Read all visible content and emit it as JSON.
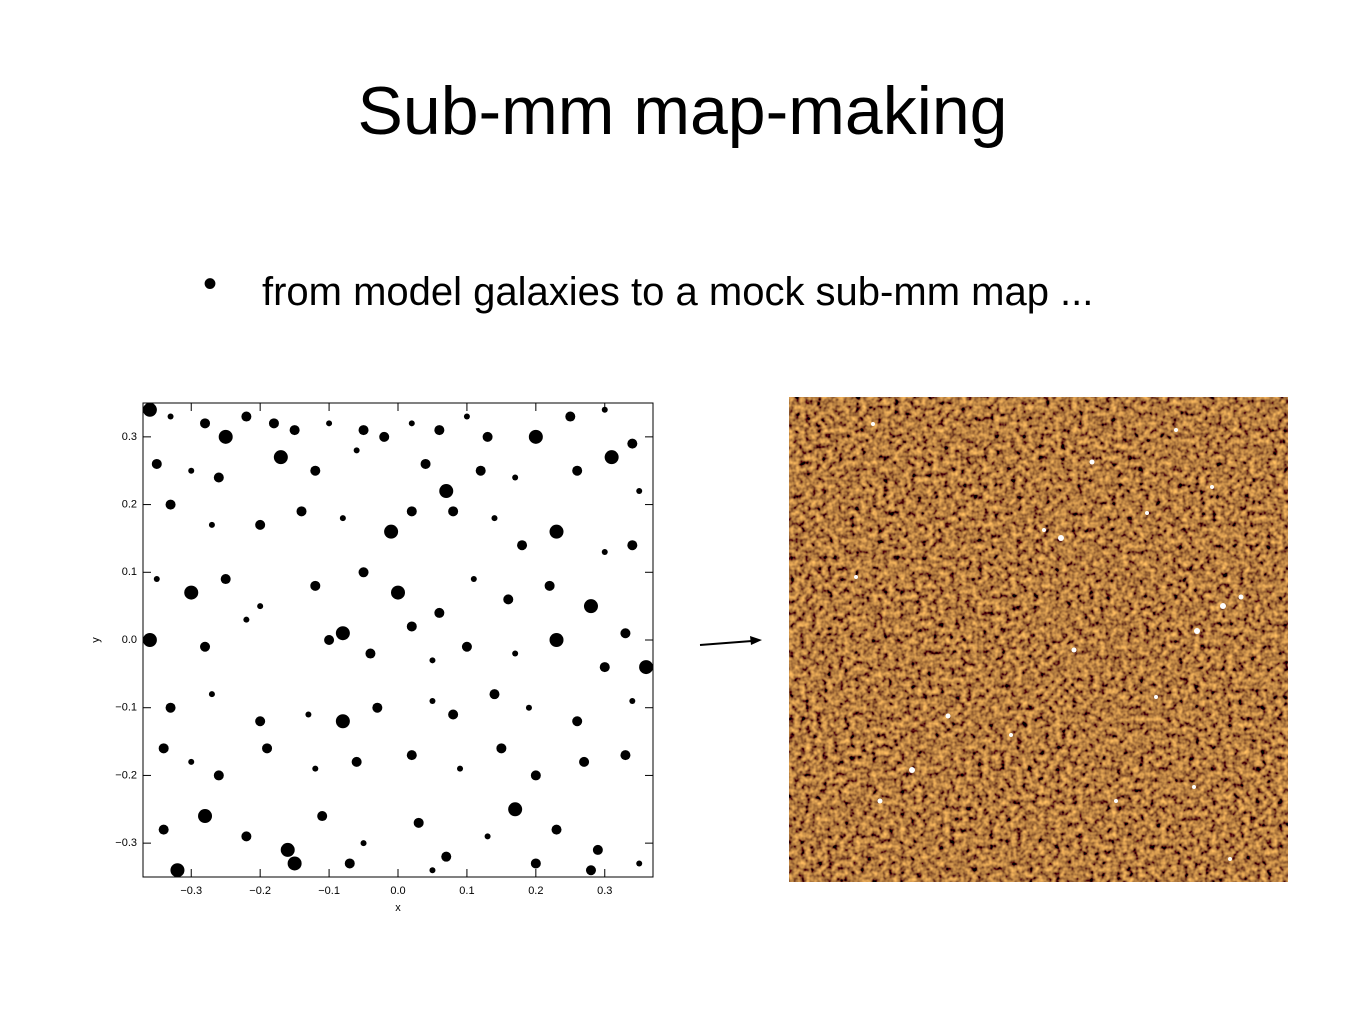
{
  "slide": {
    "title": "Sub-mm map-making",
    "bullet": "from model galaxies to a mock sub-mm map ..."
  },
  "chart_data": {
    "type": "scatter",
    "x_label": "x",
    "y_label": "y",
    "color": "#000000",
    "xlim": [
      -0.37,
      0.37
    ],
    "ylim": [
      -0.35,
      0.35
    ],
    "xticks": [
      {
        "value": -0.3,
        "label": "−0.3"
      },
      {
        "value": -0.2,
        "label": "−0.2"
      },
      {
        "value": -0.1,
        "label": "−0.1"
      },
      {
        "value": 0,
        "label": "0.0"
      },
      {
        "value": 0.1,
        "label": "0.1"
      },
      {
        "value": 0.2,
        "label": "0.2"
      },
      {
        "value": 0.3,
        "label": "0.3"
      }
    ],
    "yticks": [
      {
        "value": -0.3,
        "label": "−0.3"
      },
      {
        "value": -0.2,
        "label": "−0.2"
      },
      {
        "value": -0.1,
        "label": "−0.1"
      },
      {
        "value": 0,
        "label": "0.0"
      },
      {
        "value": 0.1,
        "label": "0.1"
      },
      {
        "value": 0.2,
        "label": "0.2"
      },
      {
        "value": 0.3,
        "label": "0.3"
      }
    ],
    "x": [
      -0.36,
      -0.33,
      -0.28,
      -0.25,
      -0.22,
      -0.18,
      -0.15,
      -0.1,
      -0.05,
      -0.02,
      0.02,
      0.06,
      0.1,
      0.13,
      0.2,
      0.25,
      0.3,
      0.34,
      -0.35,
      -0.3,
      -0.26,
      -0.17,
      -0.12,
      -0.06,
      0.04,
      0.07,
      0.12,
      0.17,
      0.26,
      0.31,
      0.35,
      -0.33,
      -0.27,
      -0.2,
      -0.14,
      -0.08,
      -0.01,
      0.02,
      0.08,
      0.14,
      0.18,
      0.23,
      0.3,
      0.34,
      -0.35,
      -0.3,
      -0.25,
      -0.2,
      -0.12,
      -0.05,
      0.0,
      0.06,
      0.11,
      0.16,
      0.22,
      0.28,
      0.33,
      -0.36,
      -0.28,
      -0.22,
      -0.1,
      -0.08,
      -0.04,
      0.02,
      0.05,
      0.1,
      0.17,
      0.23,
      0.3,
      0.36,
      -0.33,
      -0.27,
      -0.2,
      -0.13,
      -0.08,
      -0.03,
      0.05,
      0.08,
      0.14,
      0.19,
      0.26,
      0.34,
      -0.34,
      -0.3,
      -0.26,
      -0.19,
      -0.12,
      -0.06,
      0.02,
      0.09,
      0.15,
      0.2,
      0.27,
      0.33,
      -0.34,
      -0.28,
      -0.22,
      -0.16,
      -0.11,
      -0.05,
      0.03,
      0.07,
      0.13,
      0.17,
      0.23,
      0.29,
      0.35,
      -0.32,
      -0.15,
      -0.07,
      0.05,
      0.2,
      0.28
    ],
    "y": [
      0.34,
      0.33,
      0.32,
      0.3,
      0.33,
      0.32,
      0.31,
      0.32,
      0.31,
      0.3,
      0.32,
      0.31,
      0.33,
      0.3,
      0.3,
      0.33,
      0.34,
      0.29,
      0.26,
      0.25,
      0.24,
      0.27,
      0.25,
      0.28,
      0.26,
      0.22,
      0.25,
      0.24,
      0.25,
      0.27,
      0.22,
      0.2,
      0.17,
      0.17,
      0.19,
      0.18,
      0.16,
      0.19,
      0.19,
      0.18,
      0.14,
      0.16,
      0.13,
      0.14,
      0.09,
      0.07,
      0.09,
      0.05,
      0.08,
      0.1,
      0.07,
      0.04,
      0.09,
      0.06,
      0.08,
      0.05,
      0.01,
      0.0,
      -0.01,
      0.03,
      0.0,
      0.01,
      -0.02,
      0.02,
      -0.03,
      -0.01,
      -0.02,
      0.0,
      -0.04,
      -0.04,
      -0.1,
      -0.08,
      -0.12,
      -0.11,
      -0.12,
      -0.1,
      -0.09,
      -0.11,
      -0.08,
      -0.1,
      -0.12,
      -0.09,
      -0.16,
      -0.18,
      -0.2,
      -0.16,
      -0.19,
      -0.18,
      -0.17,
      -0.19,
      -0.16,
      -0.2,
      -0.18,
      -0.17,
      -0.28,
      -0.26,
      -0.29,
      -0.31,
      -0.26,
      -0.3,
      -0.27,
      -0.32,
      -0.29,
      -0.25,
      -0.28,
      -0.31,
      -0.33,
      -0.34,
      -0.33,
      -0.33,
      -0.34,
      -0.33,
      -0.34
    ],
    "sizes": [
      3,
      1,
      2,
      3,
      2,
      2,
      2,
      1,
      2,
      2,
      1,
      2,
      1,
      2,
      3,
      2,
      1,
      2,
      2,
      1,
      2,
      3,
      2,
      1,
      2,
      3,
      2,
      1,
      2,
      3,
      1,
      2,
      1,
      2,
      2,
      1,
      3,
      2,
      2,
      1,
      2,
      3,
      1,
      2,
      1,
      3,
      2,
      1,
      2,
      2,
      3,
      2,
      1,
      2,
      2,
      3,
      2,
      3,
      2,
      1,
      2,
      3,
      2,
      2,
      1,
      2,
      1,
      3,
      2,
      3,
      2,
      1,
      2,
      1,
      3,
      2,
      1,
      2,
      2,
      1,
      2,
      1,
      2,
      1,
      2,
      2,
      1,
      2,
      2,
      1,
      2,
      2,
      2,
      2,
      2,
      3,
      2,
      3,
      2,
      1,
      2,
      2,
      1,
      3,
      2,
      2,
      1,
      3,
      3,
      2,
      1,
      2,
      2
    ]
  }
}
